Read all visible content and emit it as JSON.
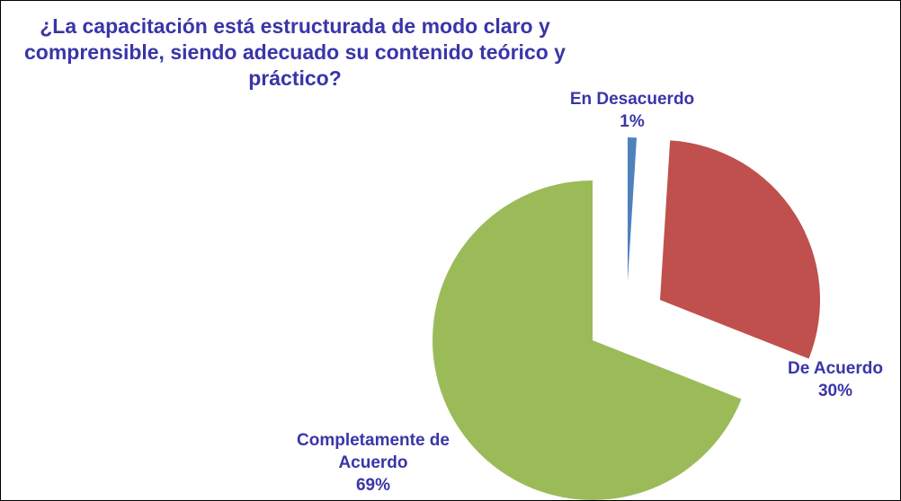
{
  "chart_data": {
    "type": "pie",
    "title": "¿La capacitación está estructurada de modo claro y comprensible, siendo adecuado su contenido teórico y práctico?",
    "categories": [
      "En Desacuerdo",
      "De Acuerdo",
      "Completamente de Acuerdo"
    ],
    "values": [
      1,
      30,
      69
    ],
    "value_labels": [
      "1%",
      "30%",
      "69%"
    ],
    "colors": [
      "#4f81bd",
      "#c0504d",
      "#9bbb59"
    ]
  }
}
